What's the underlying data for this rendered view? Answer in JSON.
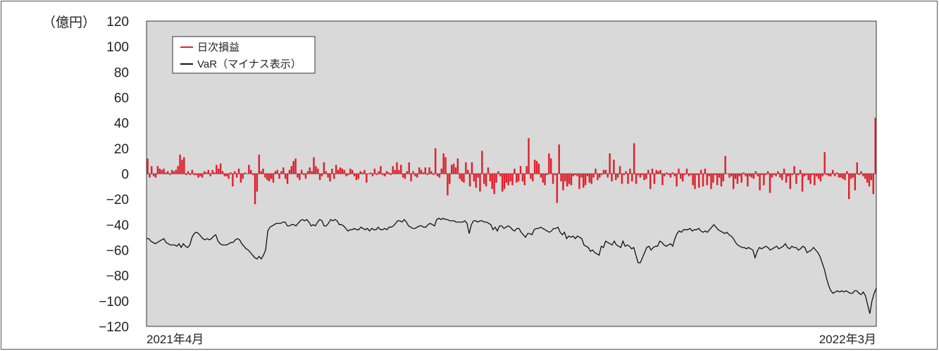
{
  "chart_data": {
    "type": "bar",
    "y_unit_label": "（億円）",
    "x_tick_labels": [
      "2021年4月",
      "2022年3月"
    ],
    "yticks": [
      120,
      100,
      80,
      60,
      40,
      20,
      0,
      -20,
      -40,
      -60,
      -80,
      -100,
      -120
    ],
    "ylim": [
      -120,
      120
    ],
    "legend_position": "top-left",
    "legend": [
      "日次損益",
      "VaR（マイナス表示）"
    ],
    "series": [
      {
        "name": "日次損益",
        "type": "bar",
        "color": "#e0202c",
        "values": [
          12,
          -3,
          6,
          -2,
          -3,
          6,
          4,
          3,
          4,
          1,
          2,
          -1,
          3,
          2,
          3,
          6,
          15,
          11,
          13,
          -1,
          2,
          -1,
          3,
          -1,
          -1,
          -3,
          -2,
          -3,
          2,
          1,
          3,
          -2,
          3,
          1,
          7,
          4,
          8,
          2,
          -2,
          -2,
          -4,
          1,
          -10,
          2,
          -3,
          4,
          -7,
          -4,
          1,
          0,
          7,
          3,
          -1,
          -24,
          -14,
          15,
          2,
          4,
          -3,
          -5,
          -6,
          -4,
          -7,
          2,
          3,
          -4,
          2,
          5,
          -4,
          -8,
          3,
          6,
          10,
          12,
          -3,
          -5,
          3,
          -1,
          -4,
          2,
          5,
          2,
          13,
          6,
          4,
          -5,
          -2,
          9,
          2,
          -3,
          -6,
          4,
          -4,
          7,
          3,
          5,
          4,
          3,
          -2,
          -1,
          4,
          3,
          -2,
          -5,
          -4,
          2,
          1,
          3,
          -7,
          0,
          1,
          -2,
          4,
          -1,
          2,
          6,
          -1,
          -2,
          2,
          1,
          -1,
          6,
          3,
          9,
          3,
          7,
          -3,
          -4,
          2,
          9,
          -6,
          2,
          -2,
          -3,
          5,
          3,
          1,
          5,
          -1,
          5,
          2,
          -1,
          20,
          -2,
          -3,
          4,
          16,
          13,
          -17,
          -8,
          7,
          8,
          5,
          12,
          -4,
          -6,
          -7,
          9,
          3,
          -10,
          9,
          -6,
          -11,
          -3,
          -14,
          18,
          -8,
          -10,
          5,
          -6,
          -12,
          -16,
          -7,
          2,
          -2,
          -14,
          -12,
          -7,
          -9,
          -6,
          -9,
          4,
          -7,
          -6,
          6,
          -6,
          -9,
          6,
          28,
          -4,
          -6,
          11,
          10,
          8,
          -3,
          -7,
          -9,
          -1,
          16,
          12,
          -8,
          -1,
          -23,
          23,
          -6,
          -13,
          -6,
          -10,
          -8,
          -9,
          -2,
          -1,
          -2,
          -12,
          -3,
          -11,
          -9,
          -2,
          -7,
          -8,
          -3,
          4,
          -5,
          -3,
          -1,
          3,
          3,
          -3,
          16,
          -6,
          11,
          -5,
          -3,
          6,
          -8,
          -1,
          2,
          -8,
          4,
          -6,
          24,
          -8,
          -1,
          -3,
          -1,
          -5,
          -4,
          3,
          -12,
          4,
          -8,
          3,
          2,
          3,
          -9,
          -2,
          1,
          -1,
          -3,
          1,
          -2,
          -10,
          4,
          -4,
          -6,
          -1,
          4,
          -2,
          -1,
          -9,
          -12,
          -1,
          -11,
          3,
          -10,
          4,
          -9,
          -2,
          -12,
          -7,
          -1,
          -9,
          -3,
          -10,
          -6,
          14,
          0,
          -3,
          -2,
          -12,
          -4,
          -8,
          -2,
          -7,
          1,
          -2,
          -10,
          -2,
          -3,
          -4,
          2,
          -2,
          -13,
          -1,
          -9,
          -1,
          2,
          -15,
          -3,
          -1,
          -2,
          2,
          -3,
          -5,
          4,
          -7,
          -2,
          -12,
          -1,
          6,
          -8,
          -1,
          3,
          -14,
          -2,
          -1,
          -5,
          -8,
          -1,
          -9,
          -2,
          -4,
          -6,
          -2,
          17,
          -1,
          -2,
          -2,
          3,
          -2,
          1,
          -3,
          -3,
          -4,
          -5,
          2,
          -20,
          -4,
          -3,
          -13,
          9,
          -1,
          2,
          -2,
          -4,
          -7,
          -10,
          -5,
          -16,
          44
        ]
      },
      {
        "name": "VaR（マイナス表示）",
        "type": "line",
        "color": "#111111",
        "values": [
          -51,
          -51,
          -53,
          -54,
          -55,
          -54,
          -53,
          -52,
          -51,
          -54,
          -55,
          -56,
          -56,
          -56,
          -57,
          -55,
          -58,
          -55,
          -57,
          -58,
          -56,
          -50,
          -47,
          -46,
          -47,
          -49,
          -51,
          -52,
          -51,
          -52,
          -51,
          -49,
          -48,
          -53,
          -55,
          -56,
          -56,
          -56,
          -55,
          -54,
          -54,
          -52,
          -51,
          -52,
          -55,
          -57,
          -59,
          -60,
          -62,
          -64,
          -66,
          -67,
          -65,
          -67,
          -64,
          -60,
          -45,
          -42,
          -41,
          -40,
          -39,
          -39,
          -39,
          -38,
          -38,
          -41,
          -41,
          -40,
          -40,
          -41,
          -39,
          -37,
          -36,
          -37,
          -36,
          -38,
          -41,
          -40,
          -41,
          -38,
          -36,
          -37,
          -41,
          -41,
          -39,
          -36,
          -37,
          -36,
          -37,
          -40,
          -40,
          -41,
          -43,
          -45,
          -44,
          -44,
          -43,
          -44,
          -44,
          -42,
          -43,
          -44,
          -43,
          -45,
          -43,
          -44,
          -44,
          -42,
          -44,
          -44,
          -43,
          -44,
          -42,
          -42,
          -41,
          -39,
          -37,
          -37,
          -38,
          -36,
          -38,
          -41,
          -42,
          -43,
          -43,
          -42,
          -41,
          -41,
          -42,
          -42,
          -40,
          -39,
          -40,
          -41,
          -36,
          -35,
          -36,
          -35,
          -36,
          -36,
          -37,
          -37,
          -37,
          -38,
          -38,
          -38,
          -38,
          -37,
          -39,
          -47,
          -40,
          -37,
          -37,
          -38,
          -37,
          -37,
          -38,
          -38,
          -39,
          -40,
          -44,
          -42,
          -45,
          -41,
          -41,
          -43,
          -42,
          -41,
          -42,
          -44,
          -45,
          -43,
          -43,
          -46,
          -48,
          -50,
          -47,
          -47,
          -48,
          -44,
          -43,
          -43,
          -42,
          -43,
          -44,
          -45,
          -46,
          -45,
          -43,
          -43,
          -42,
          -46,
          -48,
          -46,
          -51,
          -49,
          -50,
          -49,
          -51,
          -49,
          -50,
          -51,
          -56,
          -57,
          -58,
          -61,
          -60,
          -62,
          -63,
          -64,
          -57,
          -58,
          -53,
          -54,
          -55,
          -56,
          -53,
          -56,
          -57,
          -58,
          -53,
          -57,
          -56,
          -57,
          -59,
          -58,
          -64,
          -70,
          -70,
          -66,
          -62,
          -58,
          -57,
          -60,
          -58,
          -57,
          -57,
          -53,
          -54,
          -56,
          -57,
          -56,
          -55,
          -57,
          -51,
          -47,
          -45,
          -46,
          -44,
          -44,
          -44,
          -43,
          -45,
          -44,
          -44,
          -43,
          -45,
          -46,
          -45,
          -46,
          -44,
          -42,
          -40,
          -42,
          -44,
          -45,
          -46,
          -47,
          -46,
          -48,
          -49,
          -51,
          -54,
          -56,
          -57,
          -58,
          -58,
          -59,
          -58,
          -59,
          -60,
          -66,
          -61,
          -58,
          -59,
          -58,
          -57,
          -58,
          -60,
          -59,
          -58,
          -57,
          -59,
          -58,
          -57,
          -55,
          -58,
          -59,
          -57,
          -58,
          -58,
          -60,
          -59,
          -57,
          -58,
          -62,
          -61,
          -60,
          -58,
          -60,
          -62,
          -65,
          -70,
          -75,
          -82,
          -88,
          -92,
          -94,
          -93,
          -92,
          -93,
          -92,
          -93,
          -92,
          -93,
          -94,
          -94,
          -92,
          -92,
          -94,
          -95,
          -93,
          -96,
          -103,
          -110,
          -100,
          -94,
          -90
        ]
      }
    ]
  }
}
